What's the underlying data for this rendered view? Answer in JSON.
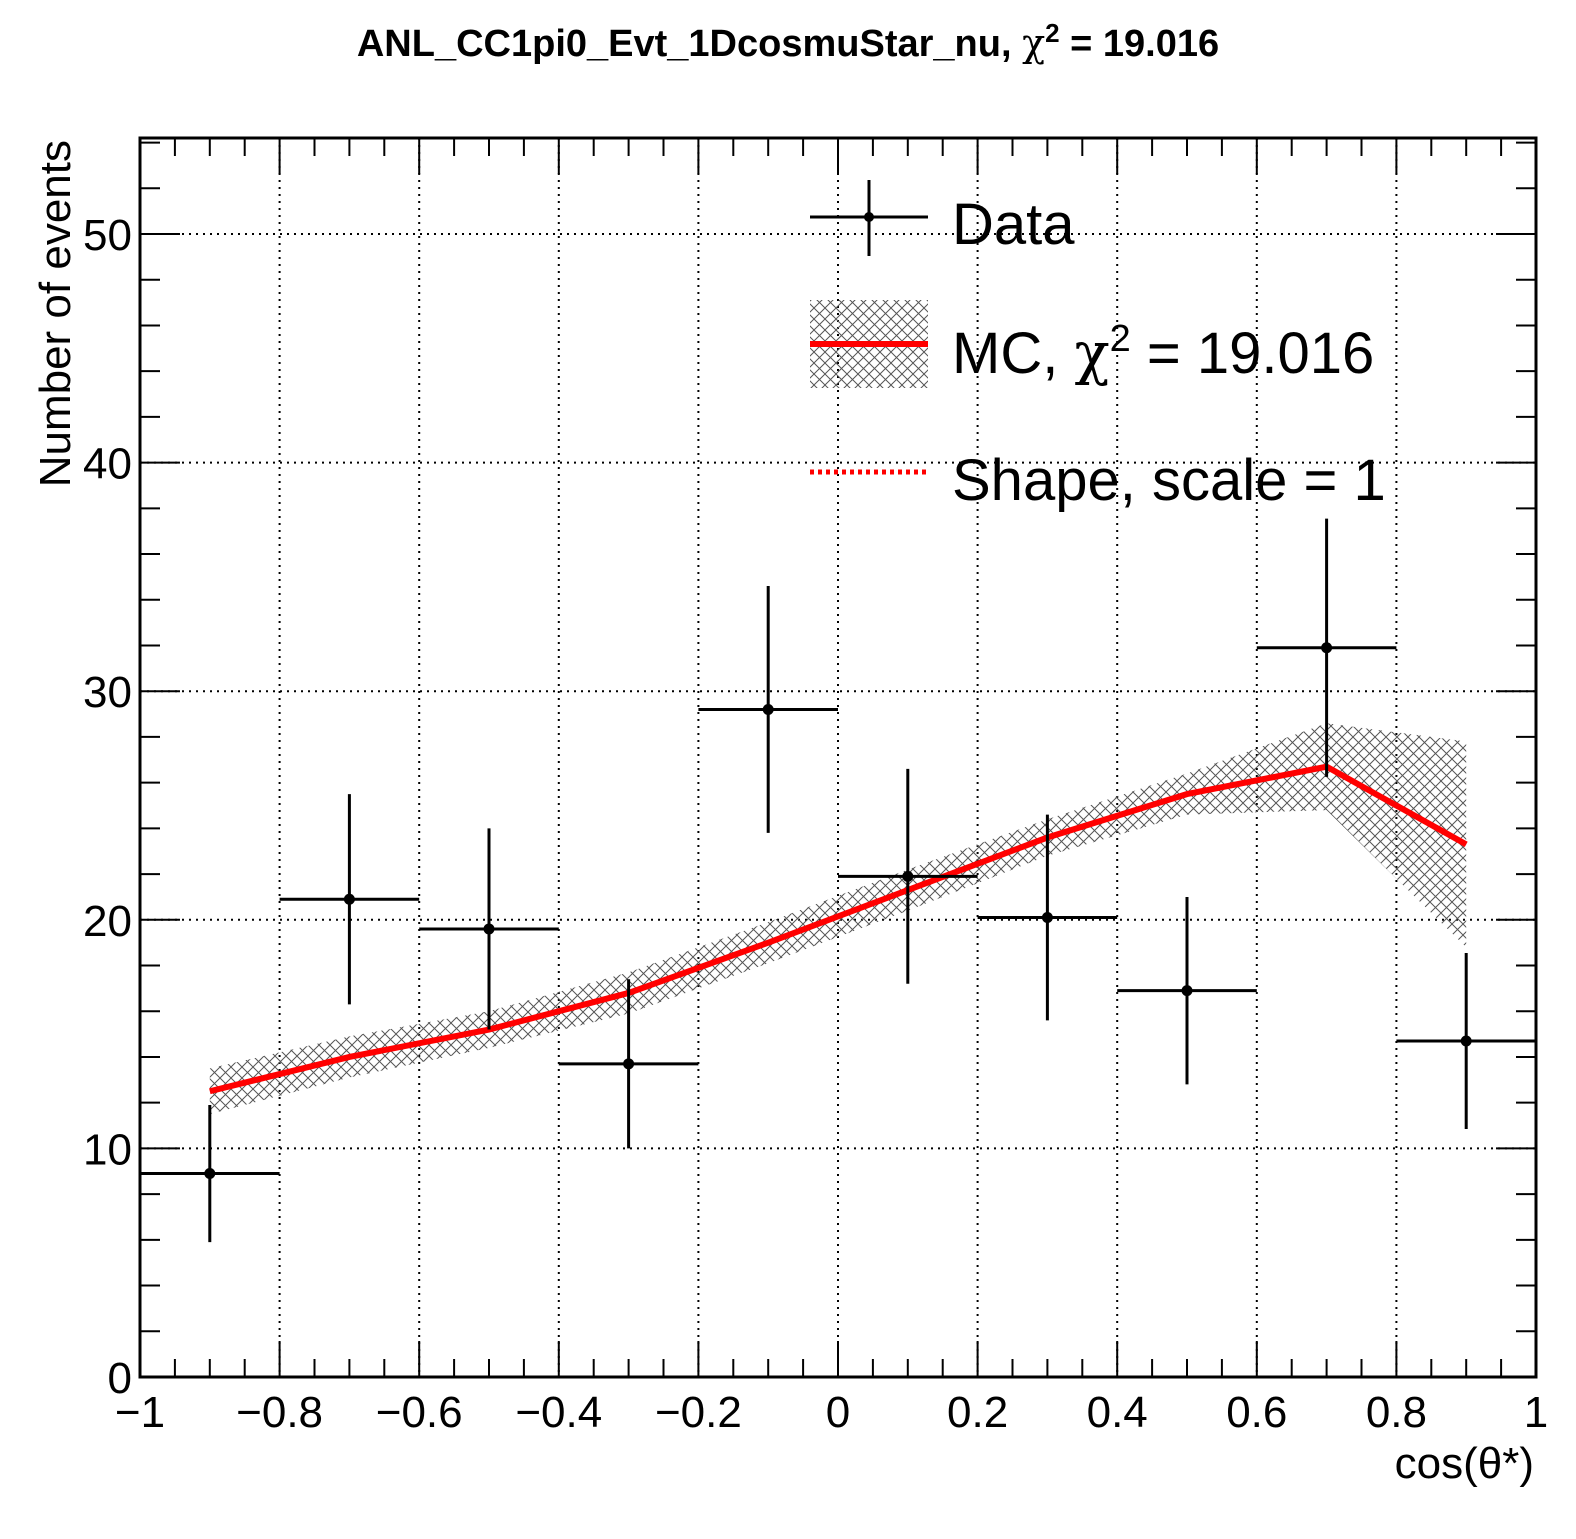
{
  "chart_data": {
    "type": "line",
    "title": "ANL_CC1pi0_Evt_1DcosmuStar_nu, χ² = 19.016",
    "title_parts": {
      "main": "ANL_CC1pi0_Evt_1DcosmuStar_nu, ",
      "chi": "χ",
      "sup": "2",
      "rest": " = 19.016"
    },
    "xlabel": "cos(θ*)",
    "ylabel": "Number of events",
    "xlim": [
      -1,
      1
    ],
    "ylim": [
      0,
      54.2
    ],
    "x_ticks": [
      -1,
      -0.8,
      -0.6,
      -0.4,
      -0.2,
      0,
      0.2,
      0.4,
      0.6,
      0.8,
      1
    ],
    "x_tick_labels": [
      "−1",
      "−0.8",
      "−0.6",
      "−0.4",
      "−0.2",
      "0",
      "0.2",
      "0.4",
      "0.6",
      "0.8",
      "1"
    ],
    "y_ticks": [
      0,
      10,
      20,
      30,
      40,
      50
    ],
    "y_tick_labels": [
      "0",
      "10",
      "20",
      "30",
      "40",
      "50"
    ],
    "grid": true,
    "legend_position": "top-right",
    "colors": {
      "data": "#000000",
      "mc": "#ff0000",
      "band": "#555555"
    },
    "series": [
      {
        "name": "Data",
        "kind": "points-with-errors",
        "x": [
          -0.9,
          -0.7,
          -0.5,
          -0.3,
          -0.1,
          0.1,
          0.3,
          0.5,
          0.7,
          0.9
        ],
        "x_halfwidth": 0.1,
        "y": [
          8.9,
          20.9,
          19.6,
          13.7,
          29.2,
          21.9,
          20.1,
          16.9,
          31.9,
          14.7
        ],
        "y_err": [
          3.0,
          4.6,
          4.4,
          3.7,
          5.4,
          4.7,
          4.5,
          4.1,
          5.65,
          3.85
        ]
      },
      {
        "name": "MC, χ² = 19.016",
        "kind": "line-with-band",
        "x": [
          -0.9,
          -0.7,
          -0.5,
          -0.3,
          -0.1,
          0.1,
          0.3,
          0.5,
          0.7,
          0.9
        ],
        "y": [
          12.5,
          14.0,
          15.2,
          16.8,
          19.0,
          21.3,
          23.6,
          25.5,
          26.7,
          23.3
        ],
        "band_err": [
          1.0,
          0.9,
          0.8,
          0.9,
          0.9,
          0.9,
          0.8,
          0.9,
          1.9,
          4.5
        ]
      },
      {
        "name": "Shape, scale = 1",
        "kind": "dotted-line"
      }
    ],
    "legend": [
      {
        "label": "Data"
      },
      {
        "label_main": "MC, ",
        "label_chi": "χ",
        "label_sup": "2",
        "label_rest": " = 19.016"
      },
      {
        "label": "Shape, scale = 1"
      }
    ]
  }
}
